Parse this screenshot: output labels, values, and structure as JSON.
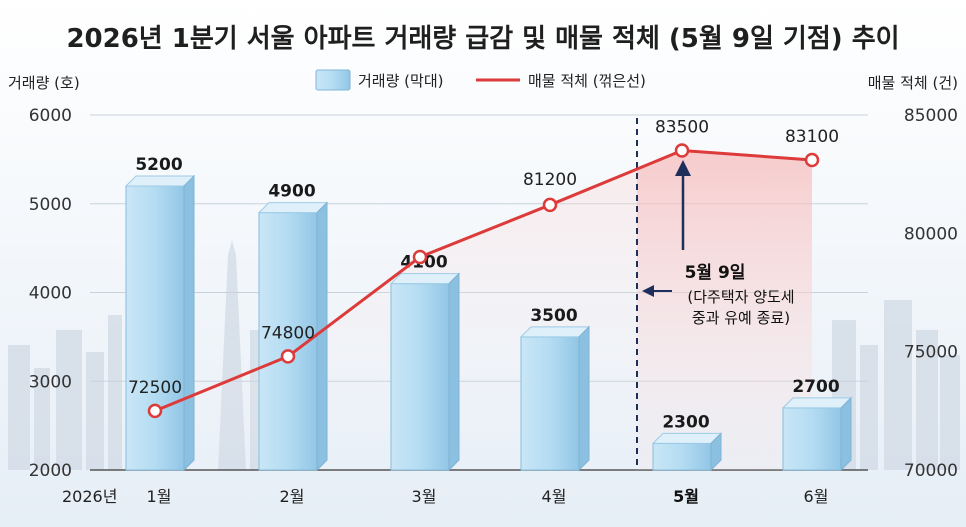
{
  "chart_data": {
    "type": "bar+line",
    "title": "2026년 1분기 서울 아파트 거래량 급감 및 매물 적체 (5월 9일 기점) 추이",
    "year_label": "2026년",
    "categories": [
      "1월",
      "2월",
      "3월",
      "4월",
      "5월",
      "6월"
    ],
    "highlight_category": "5월",
    "y_left": {
      "label": "거래량 (호)",
      "min": 2000,
      "max": 6000,
      "ticks": [
        2000,
        3000,
        4000,
        5000,
        6000
      ]
    },
    "y_right": {
      "label": "매물 적체 (건)",
      "min": 70000,
      "max": 85000,
      "ticks": [
        70000,
        75000,
        80000,
        85000
      ]
    },
    "series": [
      {
        "name": "거래량 (막대)",
        "type": "bar",
        "axis": "left",
        "values": [
          5200,
          4900,
          4100,
          3500,
          2300,
          2700
        ],
        "color": "#a8d4ee"
      },
      {
        "name": "매물 적체 (꺾은선)",
        "type": "line",
        "axis": "right",
        "values": [
          72500,
          74800,
          79000,
          81200,
          83500,
          83100
        ],
        "labels": [
          "72500",
          "74800",
          "",
          "81200",
          "83500",
          "83100"
        ],
        "color": "#dd3a3a"
      }
    ],
    "annotation": {
      "title": "5월 9일",
      "line1": "(다주택자 양도세",
      "line2": "중과 유예 종료)",
      "at_category": "5월"
    },
    "grid": true,
    "legend": "top-center"
  }
}
